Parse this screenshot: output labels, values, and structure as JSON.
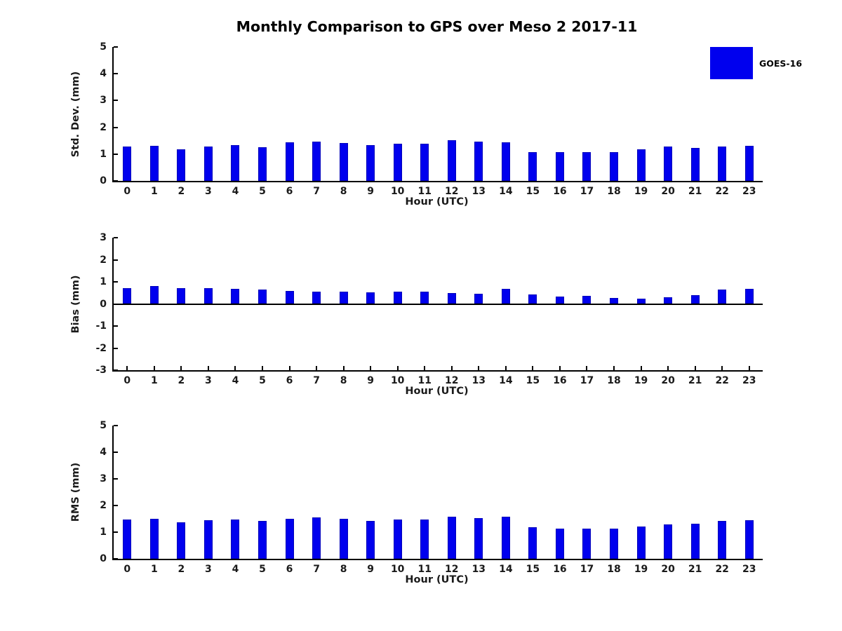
{
  "title": "Monthly Comparison to GPS over Meso 2 2017-11",
  "legend": {
    "label": "GOES-16",
    "color": "#0000ee"
  },
  "colors": {
    "bar_fill": "#0000ee",
    "bar_edge": "#0000bb",
    "axis": "#000000"
  },
  "chart_data": [
    {
      "type": "bar",
      "title": "Monthly Comparison to GPS over Meso 2 2017-11",
      "ylabel": "Std. Dev. (mm)",
      "xlabel": "Hour (UTC)",
      "ylim": [
        0,
        5
      ],
      "yticks": [
        0,
        1,
        2,
        3,
        4,
        5
      ],
      "grid": false,
      "legend_entries": [
        "GOES-16"
      ],
      "legend_position": "outside-top-right",
      "categories": [
        "0",
        "1",
        "2",
        "3",
        "4",
        "5",
        "6",
        "7",
        "8",
        "9",
        "10",
        "11",
        "12",
        "13",
        "14",
        "15",
        "16",
        "17",
        "18",
        "19",
        "20",
        "21",
        "22",
        "23"
      ],
      "values": [
        1.28,
        1.31,
        1.18,
        1.28,
        1.33,
        1.26,
        1.43,
        1.46,
        1.41,
        1.34,
        1.38,
        1.38,
        1.52,
        1.46,
        1.43,
        1.07,
        1.08,
        1.08,
        1.08,
        1.19,
        1.27,
        1.22,
        1.27,
        1.3
      ]
    },
    {
      "type": "bar",
      "title": "",
      "ylabel": "Bias (mm)",
      "xlabel": "Hour (UTC)",
      "ylim": [
        -3,
        3
      ],
      "yticks": [
        -3,
        -2,
        -1,
        0,
        1,
        2,
        3
      ],
      "grid": false,
      "categories": [
        "0",
        "1",
        "2",
        "3",
        "4",
        "5",
        "6",
        "7",
        "8",
        "9",
        "10",
        "11",
        "12",
        "13",
        "14",
        "15",
        "16",
        "17",
        "18",
        "19",
        "20",
        "21",
        "22",
        "23"
      ],
      "values": [
        0.72,
        0.8,
        0.73,
        0.7,
        0.67,
        0.66,
        0.58,
        0.56,
        0.55,
        0.52,
        0.54,
        0.55,
        0.48,
        0.45,
        0.68,
        0.44,
        0.34,
        0.37,
        0.26,
        0.23,
        0.31,
        0.39,
        0.65,
        0.67
      ]
    },
    {
      "type": "bar",
      "title": "",
      "ylabel": "RMS (mm)",
      "xlabel": "Hour (UTC)",
      "ylim": [
        0,
        5
      ],
      "yticks": [
        0,
        1,
        2,
        3,
        4,
        5
      ],
      "grid": false,
      "categories": [
        "0",
        "1",
        "2",
        "3",
        "4",
        "5",
        "6",
        "7",
        "8",
        "9",
        "10",
        "11",
        "12",
        "13",
        "14",
        "15",
        "16",
        "17",
        "18",
        "19",
        "20",
        "21",
        "22",
        "23"
      ],
      "values": [
        1.47,
        1.51,
        1.37,
        1.44,
        1.47,
        1.42,
        1.51,
        1.55,
        1.5,
        1.41,
        1.47,
        1.47,
        1.58,
        1.53,
        1.58,
        1.18,
        1.12,
        1.12,
        1.13,
        1.22,
        1.3,
        1.31,
        1.43,
        1.46
      ]
    }
  ]
}
